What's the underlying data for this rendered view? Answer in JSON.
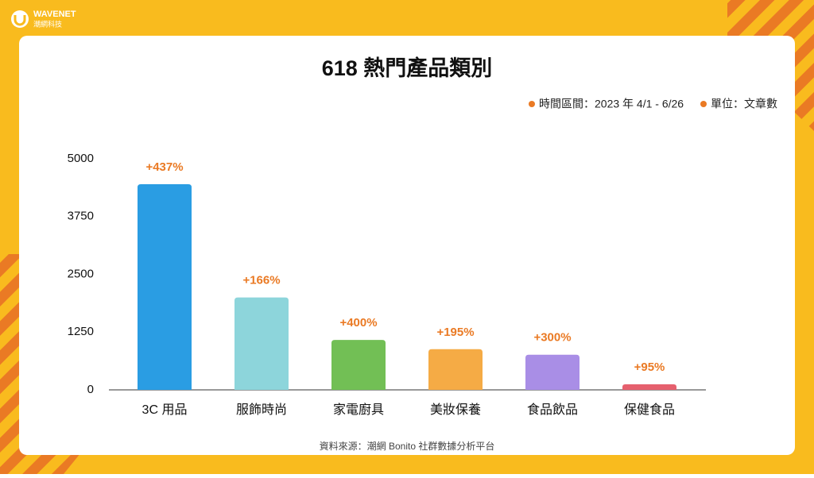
{
  "brand": {
    "name": "WAVENET",
    "sub": "潮網科技"
  },
  "chart_data": {
    "type": "bar",
    "title": "618 熱門產品類別",
    "legend_notes": [
      "時間區間：2023 年 4/1 - 6/26",
      "單位：文章數"
    ],
    "categories": [
      "3C 用品",
      "服飾時尚",
      "家電廚具",
      "美妝保養",
      "食品飲品",
      "保健食品"
    ],
    "values": [
      4450,
      2000,
      1080,
      880,
      760,
      120
    ],
    "colors": [
      "#2a9de3",
      "#8dd5db",
      "#72bf55",
      "#f5ab45",
      "#a98ee6",
      "#e6606e"
    ],
    "annotations": [
      "+437%",
      "+166%",
      "+400%",
      "+195%",
      "+300%",
      "+95%"
    ],
    "ylim": [
      0,
      5000
    ],
    "yticks": [
      0,
      1250,
      2500,
      3750,
      5000
    ],
    "grid": false,
    "source": "資料來源：潮網 Bonito 社群數據分析平台"
  }
}
